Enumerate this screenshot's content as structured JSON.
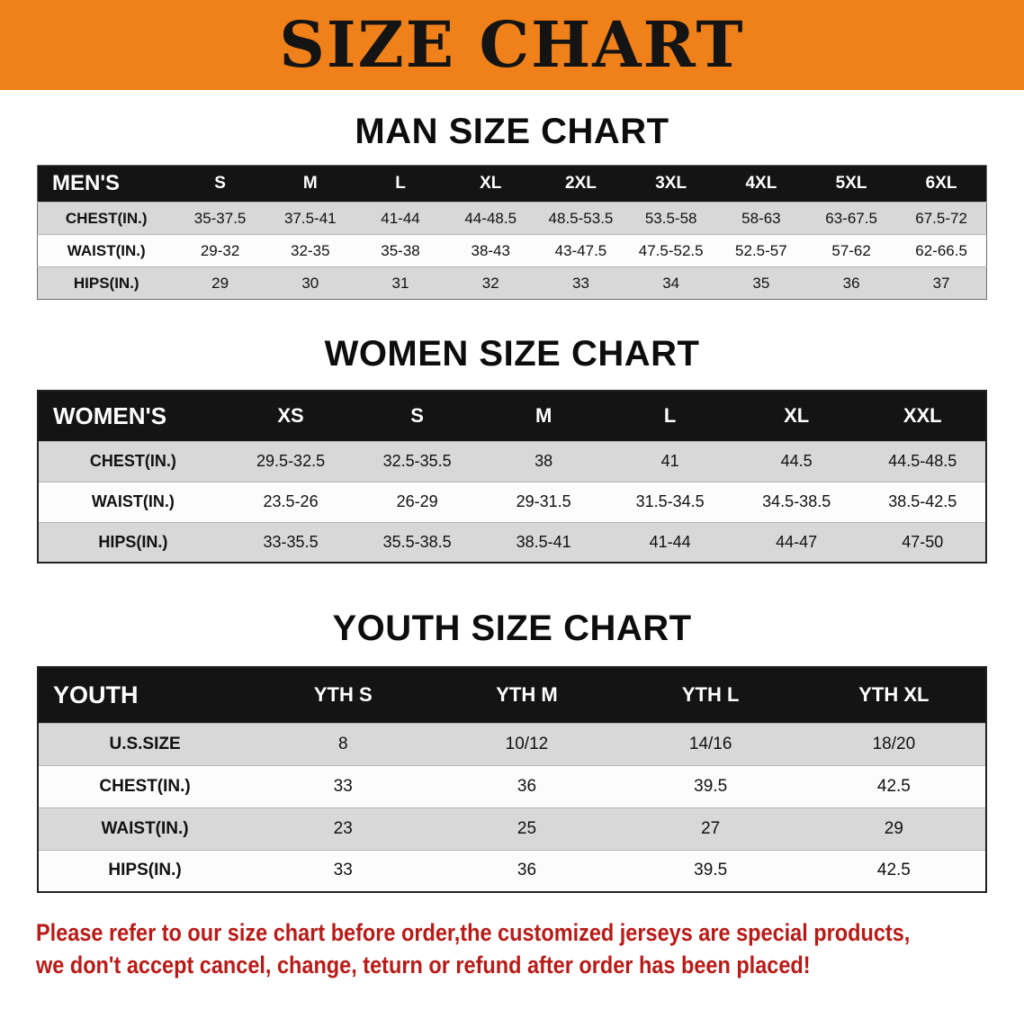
{
  "banner": {
    "title": "SIZE CHART"
  },
  "colors": {
    "banner_bg": "#F0801A",
    "banner_text": "#141414",
    "table_header_bg": "#141414",
    "table_header_text": "#FFFFFF",
    "row_stripe": "#D8D8D8",
    "row_alt": "#FCFCFC",
    "footer_text": "#B81B17"
  },
  "sections": [
    {
      "id": "men",
      "heading": "MAN SIZE CHART",
      "table": {
        "header": [
          "MEN'S",
          "S",
          "M",
          "L",
          "XL",
          "2XL",
          "3XL",
          "4XL",
          "5XL",
          "6XL"
        ],
        "rows": [
          [
            "CHEST(IN.)",
            "35-37.5",
            "37.5-41",
            "41-44",
            "44-48.5",
            "48.5-53.5",
            "53.5-58",
            "58-63",
            "63-67.5",
            "67.5-72"
          ],
          [
            "WAIST(IN.)",
            "29-32",
            "32-35",
            "35-38",
            "38-43",
            "43-47.5",
            "47.5-52.5",
            "52.5-57",
            "57-62",
            "62-66.5"
          ],
          [
            "HIPS(IN.)",
            "29",
            "30",
            "31",
            "32",
            "33",
            "34",
            "35",
            "36",
            "37"
          ]
        ]
      }
    },
    {
      "id": "women",
      "heading": "WOMEN SIZE CHART",
      "table": {
        "header": [
          "WOMEN'S",
          "XS",
          "S",
          "M",
          "L",
          "XL",
          "XXL"
        ],
        "rows": [
          [
            "CHEST(IN.)",
            "29.5-32.5",
            "32.5-35.5",
            "38",
            "41",
            "44.5",
            "44.5-48.5"
          ],
          [
            "WAIST(IN.)",
            "23.5-26",
            "26-29",
            "29-31.5",
            "31.5-34.5",
            "34.5-38.5",
            "38.5-42.5"
          ],
          [
            "HIPS(IN.)",
            "33-35.5",
            "35.5-38.5",
            "38.5-41",
            "41-44",
            "44-47",
            "47-50"
          ]
        ]
      }
    },
    {
      "id": "youth",
      "heading": "YOUTH SIZE CHART",
      "table": {
        "header": [
          "YOUTH",
          "YTH S",
          "YTH M",
          "YTH L",
          "YTH XL"
        ],
        "rows": [
          [
            "U.S.SIZE",
            "8",
            "10/12",
            "14/16",
            "18/20"
          ],
          [
            "CHEST(IN.)",
            "33",
            "36",
            "39.5",
            "42.5"
          ],
          [
            "WAIST(IN.)",
            "23",
            "25",
            "27",
            "29"
          ],
          [
            "HIPS(IN.)",
            "33",
            "36",
            "39.5",
            "42.5"
          ]
        ]
      }
    }
  ],
  "footer": {
    "line1": "Please refer to our size chart before order,the customized jerseys are special products,",
    "line2": "we don't accept cancel, change, teturn or refund after order has been placed!"
  }
}
